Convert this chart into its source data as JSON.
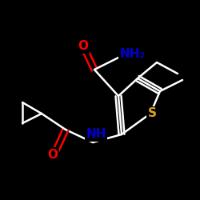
{
  "background_color": "#000000",
  "bond_color": "#ffffff",
  "atom_colors": {
    "O": "#ff0000",
    "N": "#0000cd",
    "S": "#daa520",
    "C": "#ffffff",
    "H": "#ffffff"
  },
  "bond_width": 1.8,
  "figsize": [
    2.5,
    2.5
  ],
  "dpi": 100,
  "xlim": [
    0,
    250
  ],
  "ylim": [
    0,
    250
  ]
}
